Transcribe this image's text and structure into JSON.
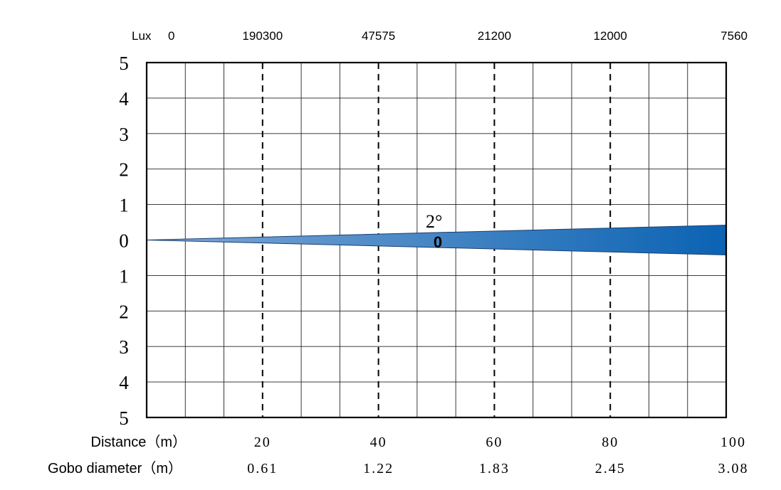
{
  "chart_data": {
    "type": "area",
    "title": "",
    "lux_label": "Lux",
    "lux_values": [
      "0",
      "190300",
      "47575",
      "21200",
      "12000",
      "7560"
    ],
    "y_ticks": [
      "5",
      "4",
      "3",
      "2",
      "1",
      "0",
      "1",
      "2",
      "3",
      "4",
      "5"
    ],
    "ylim": [
      -5,
      5
    ],
    "xlim": [
      0,
      100
    ],
    "x_minor_step": 6.667,
    "dashed_x": [
      20,
      40,
      60,
      80
    ],
    "distance_label": "Distance（m）",
    "distance_ticks": [
      "20",
      "40",
      "60",
      "80",
      "100"
    ],
    "gobo_label": "Gobo diameter（m）",
    "gobo_values": [
      "0.61",
      "1.22",
      "1.83",
      "2.45",
      "3.08"
    ],
    "beam": {
      "angle_label": "2°",
      "zero_label": "0",
      "x": [
        0,
        100
      ],
      "half_width": [
        0,
        0.42
      ],
      "color_start": "#7fa7d6",
      "color_end": "#0b63b3"
    },
    "grid": true
  }
}
